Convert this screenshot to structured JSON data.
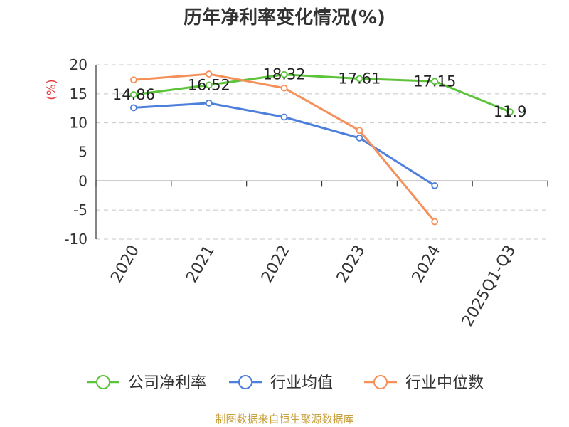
{
  "chart_data": {
    "type": "line",
    "title": "历年净利率变化情况(%)",
    "ylabel": "(%)",
    "categories": [
      "2020",
      "2021",
      "2022",
      "2023",
      "2024",
      "2025Q1-Q3"
    ],
    "y_ticks": [
      "20",
      "15",
      "10",
      "5",
      "0",
      "-5",
      "-10"
    ],
    "ylim": [
      -10,
      20
    ],
    "grid": true,
    "legend_position": "bottom",
    "series": [
      {
        "name": "公司净利率",
        "color": "#5cc33b",
        "values": [
          14.86,
          16.52,
          18.32,
          17.61,
          17.15,
          11.9
        ],
        "labels": [
          "14.86",
          "16.52",
          "18.32",
          "17.61",
          "17.15",
          "11.9"
        ]
      },
      {
        "name": "行业均值",
        "color": "#4d7fdc",
        "values": [
          12.6,
          13.4,
          11.0,
          7.4,
          -0.8,
          null
        ],
        "labels": []
      },
      {
        "name": "行业中位数",
        "color": "#f5905a",
        "values": [
          17.4,
          18.4,
          16.0,
          8.7,
          -7.0,
          null
        ],
        "labels": []
      }
    ]
  },
  "footer": {
    "source": "制图数据来自恒生聚源数据库"
  }
}
